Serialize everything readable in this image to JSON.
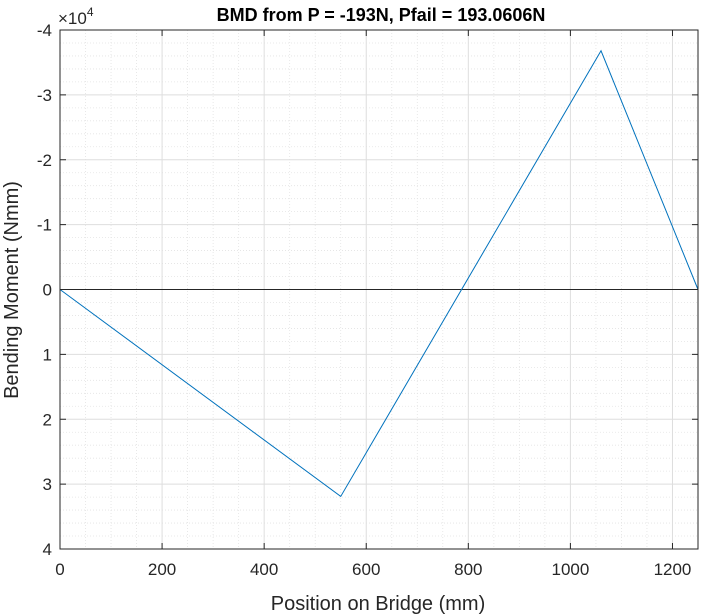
{
  "chart_data": {
    "type": "line",
    "title": "BMD from P = -193N, Pfail = 193.0606N",
    "xlabel": "Position on Bridge (mm)",
    "ylabel": "Bending Moment (Nmm)",
    "xlim": [
      0,
      1250
    ],
    "ylim": [
      -40000,
      40000
    ],
    "y_reversed": true,
    "y_exponent_label": {
      "base": "×10",
      "power": "4"
    },
    "x_ticks": [
      0,
      200,
      400,
      600,
      800,
      1000,
      1200
    ],
    "x_tick_labels": [
      "0",
      "200",
      "400",
      "600",
      "800",
      "1000",
      "1200"
    ],
    "y_ticks": [
      -40000,
      -30000,
      -20000,
      -10000,
      0,
      10000,
      20000,
      30000,
      40000
    ],
    "y_tick_labels": [
      "-4",
      "-3",
      "-2",
      "-1",
      "0",
      "1",
      "2",
      "3",
      "4"
    ],
    "grid": "major-and-minor",
    "zero_line": true,
    "series": [
      {
        "name": "BMD",
        "color": "#0072BD",
        "x": [
          0,
          550,
          1060,
          1250
        ],
        "y": [
          0,
          31900,
          -36800,
          0
        ]
      }
    ]
  }
}
